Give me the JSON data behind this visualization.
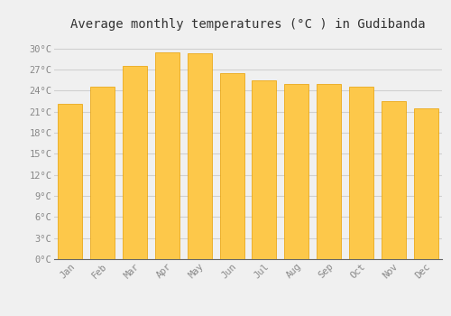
{
  "months": [
    "Jan",
    "Feb",
    "Mar",
    "Apr",
    "May",
    "Jun",
    "Jul",
    "Aug",
    "Sep",
    "Oct",
    "Nov",
    "Dec"
  ],
  "temperatures": [
    22.1,
    24.5,
    27.5,
    29.5,
    29.3,
    26.5,
    25.5,
    25.0,
    25.0,
    24.5,
    22.5,
    21.5
  ],
  "bar_color_bottom": "#FDC84A",
  "bar_color_top": "#F5A800",
  "bar_edge_color": "#E8A000",
  "title": "Average monthly temperatures (°C ) in Gudibanda",
  "title_fontsize": 10,
  "ytick_labels": [
    "0°C",
    "3°C",
    "6°C",
    "9°C",
    "12°C",
    "15°C",
    "18°C",
    "21°C",
    "24°C",
    "27°C",
    "30°C"
  ],
  "ytick_values": [
    0,
    3,
    6,
    9,
    12,
    15,
    18,
    21,
    24,
    27,
    30
  ],
  "ylim": [
    0,
    31.5
  ],
  "background_color": "#f0f0f0",
  "grid_color": "#d0d0d0",
  "tick_label_color": "#888888",
  "font_family": "monospace"
}
